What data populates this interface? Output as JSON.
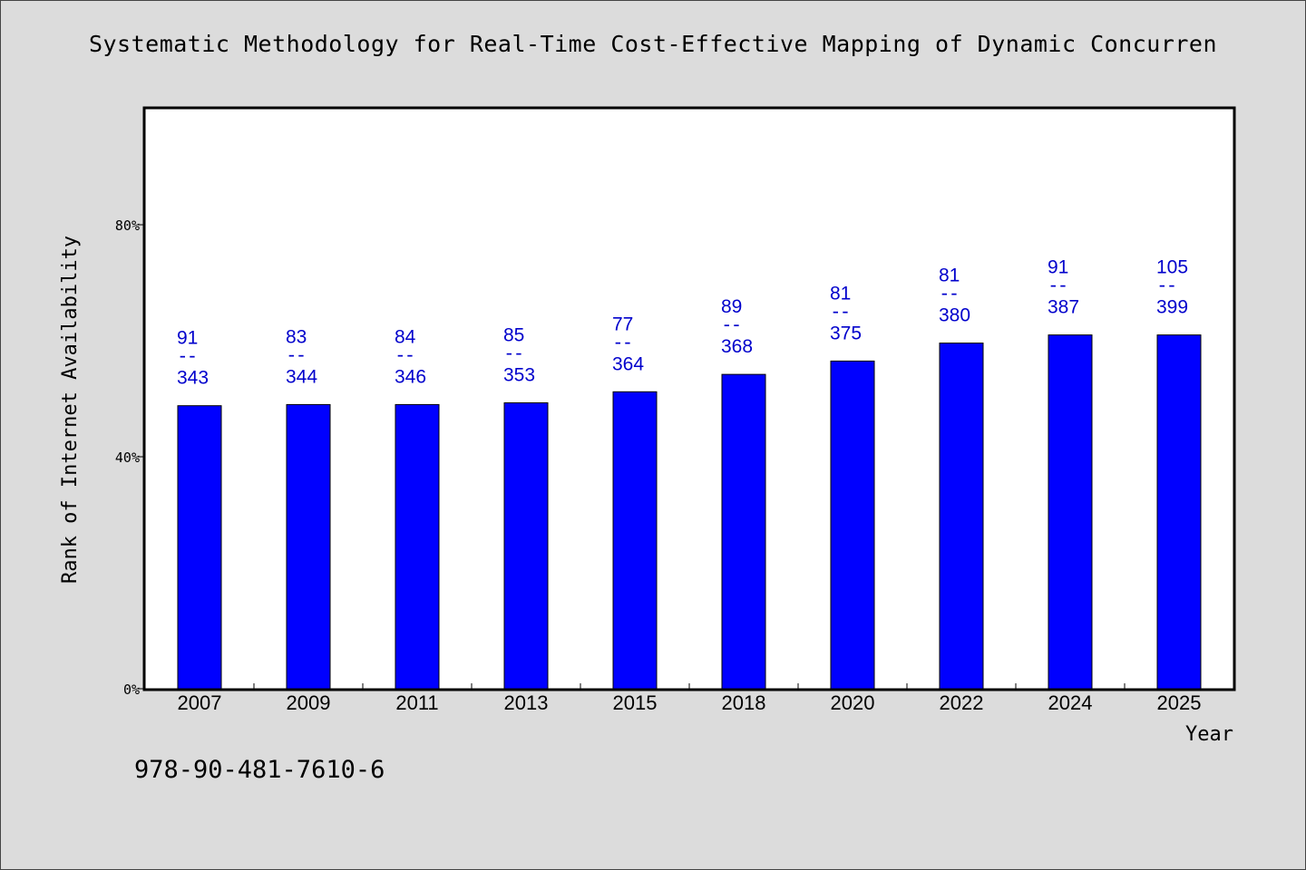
{
  "chart_data": {
    "type": "bar",
    "title": "Systematic Methodology for Real-Time Cost-Effective Mapping of Dynamic Concurren",
    "xlabel": "Year",
    "ylabel": "Rank of Internet Availability",
    "categories": [
      "2007",
      "2009",
      "2011",
      "2013",
      "2015",
      "2018",
      "2020",
      "2022",
      "2024",
      "2025"
    ],
    "series": [
      {
        "values": [
          48.8,
          49.0,
          49.0,
          49.3,
          51.2,
          54.2,
          56.5,
          59.6,
          61.0,
          61.0
        ],
        "color": "#0000ff"
      }
    ],
    "annotations": [
      {
        "top": "91",
        "sep": "--",
        "bottom": "343"
      },
      {
        "top": "83",
        "sep": "--",
        "bottom": "344"
      },
      {
        "top": "84",
        "sep": "--",
        "bottom": "346"
      },
      {
        "top": "85",
        "sep": "--",
        "bottom": "353"
      },
      {
        "top": "77",
        "sep": "--",
        "bottom": "364"
      },
      {
        "top": "89",
        "sep": "--",
        "bottom": "368"
      },
      {
        "top": "81",
        "sep": "--",
        "bottom": "375"
      },
      {
        "top": "81",
        "sep": "--",
        "bottom": "380"
      },
      {
        "top": "91",
        "sep": "--",
        "bottom": "387"
      },
      {
        "top": "105",
        "sep": "--",
        "bottom": "399"
      }
    ],
    "ylim": [
      0,
      100
    ],
    "yticks": [
      0,
      40,
      80
    ],
    "ytick_labels": [
      "0%",
      "40%",
      "80%"
    ],
    "grid": false,
    "legend": "none",
    "annotation_color": "#0000cc",
    "background": "#dcdcdc",
    "plot_background": "#ffffff"
  },
  "footnote": "978-90-481-7610-6"
}
